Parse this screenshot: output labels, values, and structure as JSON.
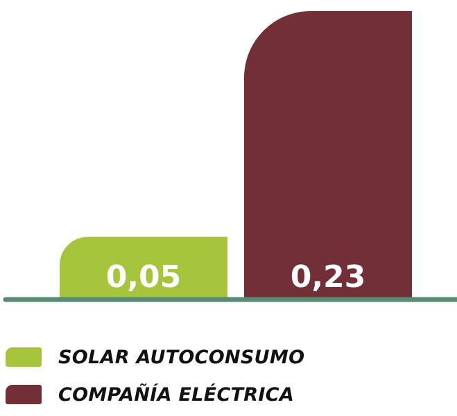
{
  "chart_data": {
    "type": "bar",
    "categories": [
      "SOLAR AUTOCONSUMO",
      "COMPAÑÍA ELÉCTRICA"
    ],
    "values": [
      0.05,
      0.23
    ],
    "value_labels": [
      "0,05",
      "0,23"
    ],
    "colors": [
      "#a6c43c",
      "#722f37"
    ],
    "baseline_color": "#5a8a76",
    "legend_position": "bottom-left",
    "grid": false,
    "ylim": [
      0,
      0.23
    ]
  },
  "legend": {
    "items": [
      {
        "label": "SOLAR AUTOCONSUMO",
        "color": "#a6c43c"
      },
      {
        "label": "COMPAÑÍA ELÉCTRICA",
        "color": "#722f37"
      }
    ]
  }
}
